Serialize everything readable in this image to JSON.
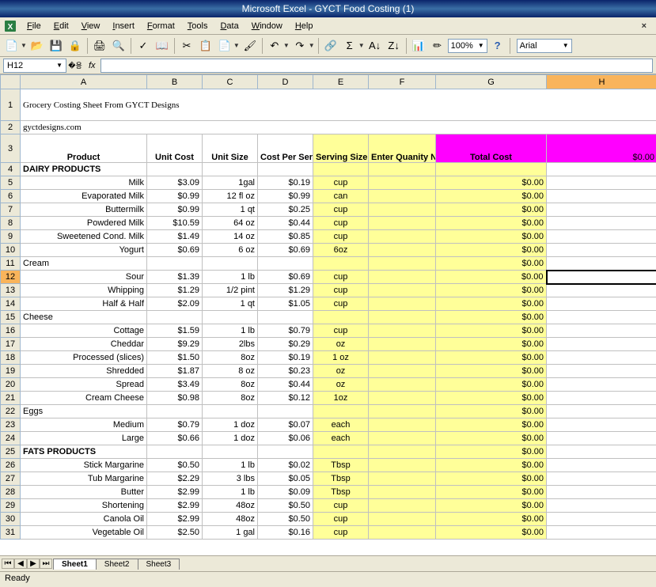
{
  "app": {
    "title": "Microsoft Excel - GYCT Food Costing (1)"
  },
  "menu": [
    "File",
    "Edit",
    "View",
    "Insert",
    "Format",
    "Tools",
    "Data",
    "Window",
    "Help"
  ],
  "toolbar": {
    "zoom": "100%",
    "font": "Arial"
  },
  "formula": {
    "namebox": "H12",
    "fx": "fx"
  },
  "columns": [
    "A",
    "B",
    "C",
    "D",
    "E",
    "F",
    "G",
    "H"
  ],
  "title": "Grocery Costing Sheet From GYCT Designs",
  "url": "gyctdesigns.com",
  "headers": {
    "product": "Product",
    "unitcost": "Unit Cost",
    "unitsize": "Unit Size",
    "cps": "Cost Per Serving",
    "ssize": "Serving Size",
    "qty": "Enter Quanity Needed",
    "total": "Total Cost",
    "hval": "$0.00"
  },
  "rows": [
    {
      "n": 4,
      "type": "section",
      "a": "DAIRY PRODUCTS"
    },
    {
      "n": 5,
      "a": "Milk",
      "b": "$3.09",
      "c": "1gal",
      "d": "$0.19",
      "e": "cup",
      "g": "$0.00"
    },
    {
      "n": 6,
      "a": "Evaporated Milk",
      "b": "$0.99",
      "c": "12 fl oz",
      "d": "$0.99",
      "e": "can",
      "g": "$0.00"
    },
    {
      "n": 7,
      "a": "Buttermilk",
      "b": "$0.99",
      "c": "1 qt",
      "d": "$0.25",
      "e": "cup",
      "g": "$0.00"
    },
    {
      "n": 8,
      "a": "Powdered Milk",
      "b": "$10.59",
      "c": "64 oz",
      "d": "$0.44",
      "e": "cup",
      "g": "$0.00"
    },
    {
      "n": 9,
      "a": "Sweetened Cond. Milk",
      "b": "$1.49",
      "c": "14 oz",
      "d": "$0.85",
      "e": "cup",
      "g": "$0.00"
    },
    {
      "n": 10,
      "a": "Yogurt",
      "b": "$0.69",
      "c": "6 oz",
      "d": "$0.69",
      "e": "6oz",
      "g": "$0.00"
    },
    {
      "n": 11,
      "type": "sub",
      "a": "Cream",
      "g": "$0.00"
    },
    {
      "n": 12,
      "a": "Sour",
      "b": "$1.39",
      "c": "1 lb",
      "d": "$0.69",
      "e": "cup",
      "g": "$0.00",
      "sel": true
    },
    {
      "n": 13,
      "a": "Whipping",
      "b": "$1.29",
      "c": "1/2 pint",
      "d": "$1.29",
      "e": "cup",
      "g": "$0.00"
    },
    {
      "n": 14,
      "a": "Half & Half",
      "b": "$2.09",
      "c": "1 qt",
      "d": "$1.05",
      "e": "cup",
      "g": "$0.00"
    },
    {
      "n": 15,
      "type": "sub",
      "a": "Cheese",
      "g": "$0.00"
    },
    {
      "n": 16,
      "a": "Cottage",
      "b": "$1.59",
      "c": "1 lb",
      "d": "$0.79",
      "e": "cup",
      "g": "$0.00"
    },
    {
      "n": 17,
      "a": "Cheddar",
      "b": "$9.29",
      "c": "2lbs",
      "d": "$0.29",
      "e": "oz",
      "g": "$0.00"
    },
    {
      "n": 18,
      "a": "Processed (slices)",
      "b": "$1.50",
      "c": "8oz",
      "d": "$0.19",
      "e": "1 oz",
      "g": "$0.00"
    },
    {
      "n": 19,
      "a": "Shredded",
      "b": "$1.87",
      "c": "8 oz",
      "d": "$0.23",
      "e": "oz",
      "g": "$0.00"
    },
    {
      "n": 20,
      "a": "Spread",
      "b": "$3.49",
      "c": "8oz",
      "d": "$0.44",
      "e": "oz",
      "g": "$0.00"
    },
    {
      "n": 21,
      "a": "Cream Cheese",
      "b": "$0.98",
      "c": "8oz",
      "d": "$0.12",
      "e": "1oz",
      "g": "$0.00"
    },
    {
      "n": 22,
      "type": "sub",
      "a": "Eggs",
      "g": "$0.00"
    },
    {
      "n": 23,
      "a": "Medium",
      "b": "$0.79",
      "c": "1 doz",
      "d": "$0.07",
      "e": "each",
      "g": "$0.00"
    },
    {
      "n": 24,
      "a": "Large",
      "b": "$0.66",
      "c": "1 doz",
      "d": "$0.06",
      "e": "each",
      "g": "$0.00"
    },
    {
      "n": 25,
      "type": "section",
      "a": "FATS PRODUCTS",
      "g": "$0.00"
    },
    {
      "n": 26,
      "a": "Stick Margarine",
      "b": "$0.50",
      "c": "1 lb",
      "d": "$0.02",
      "e": "Tbsp",
      "g": "$0.00"
    },
    {
      "n": 27,
      "a": "Tub Margarine",
      "b": "$2.29",
      "c": "3 lbs",
      "d": "$0.05",
      "e": "Tbsp",
      "g": "$0.00"
    },
    {
      "n": 28,
      "a": "Butter",
      "b": "$2.99",
      "c": "1 lb",
      "d": "$0.09",
      "e": "Tbsp",
      "g": "$0.00"
    },
    {
      "n": 29,
      "a": "Shortening",
      "b": "$2.99",
      "c": "48oz",
      "d": "$0.50",
      "e": "cup",
      "g": "$0.00"
    },
    {
      "n": 30,
      "a": "Canola Oil",
      "b": "$2.99",
      "c": "48oz",
      "d": "$0.50",
      "e": "cup",
      "g": "$0.00"
    },
    {
      "n": 31,
      "a": "Vegetable Oil",
      "b": "$2.50",
      "c": "1 gal",
      "d": "$0.16",
      "e": "cup",
      "g": "$0.00"
    }
  ],
  "tabs": {
    "sheets": [
      "Sheet1",
      "Sheet2",
      "Sheet3"
    ],
    "active": 0
  },
  "status": "Ready"
}
